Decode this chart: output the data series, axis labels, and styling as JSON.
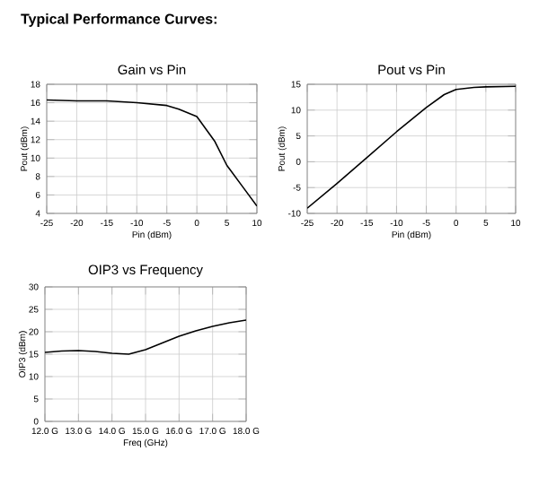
{
  "chart_data": [
    {
      "type": "line",
      "title": "Gain vs Pin",
      "xlabel": "Pin (dBm)",
      "ylabel": "Pout (dBm)",
      "annotations": [
        "Typical Performance Curves:"
      ],
      "x": [
        -25,
        -20,
        -15,
        -10,
        -5,
        -3,
        0,
        3,
        5,
        7.5,
        10
      ],
      "series": [
        {
          "color": "#000000",
          "values": [
            16.3,
            16.2,
            16.2,
            16.0,
            15.7,
            15.3,
            14.5,
            11.8,
            9.2,
            7.0,
            4.8
          ]
        }
      ],
      "xlim": [
        -25,
        10
      ],
      "xticks": [
        -25,
        -20,
        -15,
        -10,
        -5,
        0,
        5,
        10
      ],
      "ylim": [
        4,
        18
      ],
      "yticks": [
        4,
        6,
        8,
        10,
        12,
        14,
        16,
        18
      ],
      "grid": true
    },
    {
      "type": "line",
      "title": "Pout vs Pin",
      "xlabel": "Pin (dBm)",
      "ylabel": "Pout (dBm)",
      "x": [
        -25,
        -20,
        -15,
        -10,
        -5,
        -2,
        0,
        3,
        5,
        10
      ],
      "series": [
        {
          "color": "#000000",
          "values": [
            -9.0,
            -4.2,
            0.8,
            5.8,
            10.5,
            13.0,
            14.0,
            14.4,
            14.5,
            14.6
          ]
        }
      ],
      "xlim": [
        -25,
        10
      ],
      "xticks": [
        -25,
        -20,
        -15,
        -10,
        -5,
        0,
        5,
        10
      ],
      "ylim": [
        -10,
        15
      ],
      "yticks": [
        -10,
        -5,
        0,
        5,
        10,
        15
      ],
      "grid": true
    },
    {
      "type": "line",
      "title": "OIP3 vs Frequency",
      "xlabel": "Freq (GHz)",
      "ylabel": "OIP3 (dBm)",
      "x": [
        12,
        12.5,
        13,
        13.5,
        14,
        14.5,
        15,
        15.5,
        16,
        16.5,
        17,
        17.5,
        18
      ],
      "series": [
        {
          "color": "#000000",
          "values": [
            15.4,
            15.7,
            15.8,
            15.6,
            15.2,
            15.0,
            16.0,
            17.5,
            19.0,
            20.2,
            21.2,
            22.0,
            22.6
          ]
        }
      ],
      "xlim": [
        12,
        18
      ],
      "xticks": [
        {
          "value": 12,
          "label": "12.0 G"
        },
        {
          "value": 13,
          "label": "13.0 G"
        },
        {
          "value": 14,
          "label": "14.0 G"
        },
        {
          "value": 15,
          "label": "15.0 G"
        },
        {
          "value": 16,
          "label": "16.0 G"
        },
        {
          "value": 17,
          "label": "17.0 G"
        },
        {
          "value": 18,
          "label": "18.0 G"
        }
      ],
      "ylim": [
        0,
        30
      ],
      "yticks": [
        0,
        5,
        10,
        15,
        20,
        25,
        30
      ],
      "grid": true
    }
  ]
}
